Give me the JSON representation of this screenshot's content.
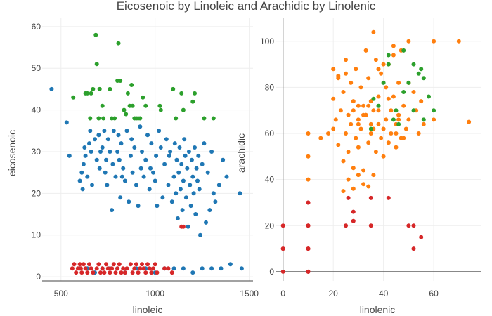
{
  "chart_data": {
    "type": "scatter",
    "title": "Eicosenoic by Linoleic and Arachidic by Linolenic",
    "colors": {
      "red": "#d62728",
      "blue": "#1f77b4",
      "green": "#2ca02c",
      "orange": "#ff7f0e"
    },
    "subplots": [
      {
        "xlabel": "linoleic",
        "ylabel": "eicosenoic",
        "xlim": [
          400,
          1520
        ],
        "ylim": [
          -1,
          62
        ],
        "xticks": [
          500,
          1000,
          1500
        ],
        "yticks": [
          0,
          10,
          20,
          30,
          40,
          50,
          60
        ],
        "xtick_labels": [
          "500",
          "1000",
          "1500"
        ],
        "ytick_labels": [
          "0",
          "10",
          "20",
          "30",
          "40",
          "50",
          "60"
        ],
        "series": [
          {
            "color": "#2ca02c",
            "x": [
              565,
              630,
              640,
              655,
              660,
              670,
              685,
              690,
              700,
              705,
              720,
              725,
              760,
              770,
              785,
              800,
              805,
              815,
              835,
              845,
              855,
              865,
              875,
              880,
              890,
              900,
              910,
              920,
              935,
              950,
              1025,
              1030,
              1095,
              1110,
              1140,
              1150,
              1200,
              1210,
              1260,
              1310
            ],
            "y": [
              43,
              44,
              44,
              38,
              44,
              45,
              58,
              51,
              38,
              45,
              41,
              38,
              45,
              38,
              38,
              47,
              56,
              47,
              40,
              39,
              44,
              41,
              46,
              41,
              38,
              38,
              38,
              38,
              43,
              41,
              41,
              40,
              45,
              38,
              44,
              40,
              42,
              44,
              38,
              38
            ]
          },
          {
            "color": "#1f77b4",
            "x": [
              450,
              530,
              545,
              600,
              610,
              615,
              620,
              625,
              630,
              640,
              650,
              655,
              660,
              665,
              680,
              690,
              700,
              705,
              710,
              720,
              730,
              735,
              740,
              745,
              750,
              760,
              770,
              775,
              780,
              790,
              800,
              805,
              810,
              815,
              820,
              825,
              830,
              840,
              850,
              860,
              870,
              875,
              880,
              890,
              900,
              910,
              920,
              925,
              930,
              940,
              950,
              960,
              970,
              975,
              980,
              990,
              1000,
              1005,
              1010,
              1020,
              1030,
              1040,
              1050,
              1060,
              1070,
              1075,
              1080,
              1090,
              1100,
              1105,
              1110,
              1115,
              1120,
              1125,
              1130,
              1135,
              1140,
              1145,
              1150,
              1155,
              1160,
              1165,
              1170,
              1175,
              1180,
              1185,
              1190,
              1195,
              1200,
              1205,
              1210,
              1215,
              1220,
              1225,
              1230,
              1235,
              1240,
              1250,
              1260,
              1270,
              1280,
              1290,
              1300,
              1310,
              1320,
              1340,
              1360,
              1380,
              1450,
              600,
              640,
              680,
              720,
              760,
              800,
              840,
              900,
              950,
              1000,
              1050,
              1100,
              1150,
              1200,
              1250,
              1300,
              1350,
              1400,
              1460
            ],
            "y": [
              45,
              37,
              29,
              23,
              25,
              21,
              27,
              31,
              29,
              24,
              32,
              35,
              30,
              22,
              33,
              28,
              34,
              26,
              30,
              31,
              35,
              25,
              28,
              22,
              33,
              30,
              16,
              27,
              35,
              24,
              30,
              34,
              28,
              19,
              32,
              24,
              26,
              23,
              35,
              18,
              29,
              33,
              25,
              31,
              22,
              17,
              36,
              26,
              30,
              24,
              28,
              34,
              21,
              26,
              32,
              25,
              23,
              29,
              17,
              35,
              31,
              19,
              27,
              33,
              22,
              29,
              30,
              18,
              24,
              32,
              20,
              28,
              14,
              25,
              31,
              21,
              27,
              16,
              23,
              33,
              29,
              19,
              26,
              12,
              30,
              22,
              17,
              28,
              24,
              20,
              31,
              15,
              26,
              23,
              29,
              21,
              10,
              27,
              32,
              13,
              25,
              16,
              30,
              20,
              18,
              22,
              28,
              24,
              20,
              2,
              2,
              1,
              2,
              2,
              2,
              1,
              2,
              2,
              1,
              2,
              2,
              2,
              1,
              2,
              2,
              2,
              3,
              2
            ]
          },
          {
            "color": "#d62728",
            "x": [
              560,
              570,
              580,
              590,
              600,
              605,
              610,
              620,
              630,
              640,
              650,
              660,
              670,
              690,
              700,
              710,
              720,
              730,
              740,
              750,
              760,
              770,
              780,
              790,
              800,
              810,
              820,
              830,
              840,
              850,
              870,
              880,
              890,
              900,
              910,
              920,
              930,
              940,
              950,
              960,
              970,
              980,
              990,
              1000,
              1010,
              1050,
              1070,
              1090,
              1140,
              1150
            ],
            "y": [
              2,
              3,
              1,
              2,
              3,
              2,
              1,
              3,
              2,
              1,
              3,
              2,
              1,
              2,
              3,
              1,
              2,
              1,
              3,
              2,
              1,
              2,
              3,
              1,
              2,
              3,
              1,
              2,
              1,
              2,
              3,
              1,
              2,
              3,
              1,
              2,
              3,
              2,
              1,
              3,
              2,
              1,
              2,
              3,
              1,
              2,
              2,
              1,
              12,
              12
            ]
          }
        ]
      },
      {
        "xlabel": "linolenic",
        "ylabel": "arachidic",
        "xlim": [
          -3,
          79
        ],
        "ylim": [
          -4,
          110
        ],
        "xticks": [
          0,
          20,
          40,
          60
        ],
        "yticks": [
          0,
          20,
          40,
          60,
          80,
          100
        ],
        "xtick_labels": [
          "0",
          "20",
          "40",
          "60"
        ],
        "ytick_labels": [
          "0",
          "20",
          "40",
          "60",
          "80",
          "100"
        ],
        "series": [
          {
            "color": "#ff7f0e",
            "x": [
              10,
              10,
              10,
              15,
              18,
              20,
              20,
              21,
              22,
              22,
              23,
              24,
              24,
              25,
              25,
              26,
              26,
              27,
              27,
              28,
              28,
              29,
              29,
              30,
              30,
              31,
              31,
              32,
              32,
              33,
              33,
              34,
              34,
              35,
              35,
              36,
              36,
              37,
              37,
              38,
              38,
              39,
              39,
              40,
              40,
              41,
              41,
              42,
              42,
              43,
              43,
              44,
              44,
              45,
              45,
              46,
              46,
              47,
              47,
              48,
              49,
              50,
              50,
              52,
              53,
              54,
              55,
              56,
              60,
              60,
              70,
              74,
              20,
              22,
              25,
              28,
              30,
              33,
              35,
              38,
              40,
              42,
              45,
              48,
              50,
              36,
              38,
              40,
              42,
              44,
              46,
              24,
              26,
              28,
              30,
              32,
              34,
              30,
              32,
              34,
              36
            ],
            "y": [
              60,
              50,
              40,
              58,
              60,
              62,
              75,
              66,
              55,
              85,
              70,
              48,
              78,
              92,
              60,
              68,
              52,
              82,
              64,
              74,
              45,
              58,
              88,
              66,
              54,
              80,
              62,
              72,
              44,
              96,
              68,
              56,
              84,
              60,
              74,
              42,
              70,
              52,
              92,
              64,
              76,
              58,
              86,
              62,
              50,
              80,
              66,
              56,
              90,
              70,
              60,
              76,
              94,
              64,
              54,
              82,
              68,
              58,
              96,
              72,
              62,
              100,
              66,
              78,
              70,
              60,
              74,
              64,
              100,
              66,
              100,
              65,
              88,
              84,
              86,
              70,
              72,
              68,
              64,
              70,
              62,
              56,
              60,
              58,
              82,
              104,
              88,
              90,
              75,
              98,
              66,
              35,
              40,
              36,
              42,
              38,
              37,
              64,
              68,
              72,
              62
            ]
          },
          {
            "color": "#2ca02c",
            "x": [
              35,
              38,
              40,
              42,
              44,
              45,
              46,
              48,
              50,
              52,
              54,
              55,
              56,
              58,
              60,
              42,
              48,
              52,
              56,
              36
            ],
            "y": [
              62,
              72,
              82,
              90,
              66,
              70,
              64,
              78,
              82,
              90,
              86,
              88,
              66,
              76,
              70,
              94,
              96,
              70,
              84,
              75
            ]
          },
          {
            "color": "#d62728",
            "x": [
              0,
              0,
              0,
              0,
              10,
              10,
              10,
              10,
              10,
              10,
              10,
              10,
              25,
              26,
              28,
              28,
              35,
              35,
              42,
              50,
              52,
              52,
              55
            ],
            "y": [
              0,
              10,
              10,
              20,
              0,
              10,
              10,
              20,
              20,
              30,
              30,
              0,
              20,
              32,
              26,
              22,
              20,
              32,
              32,
              20,
              20,
              10,
              15
            ]
          }
        ]
      }
    ]
  }
}
